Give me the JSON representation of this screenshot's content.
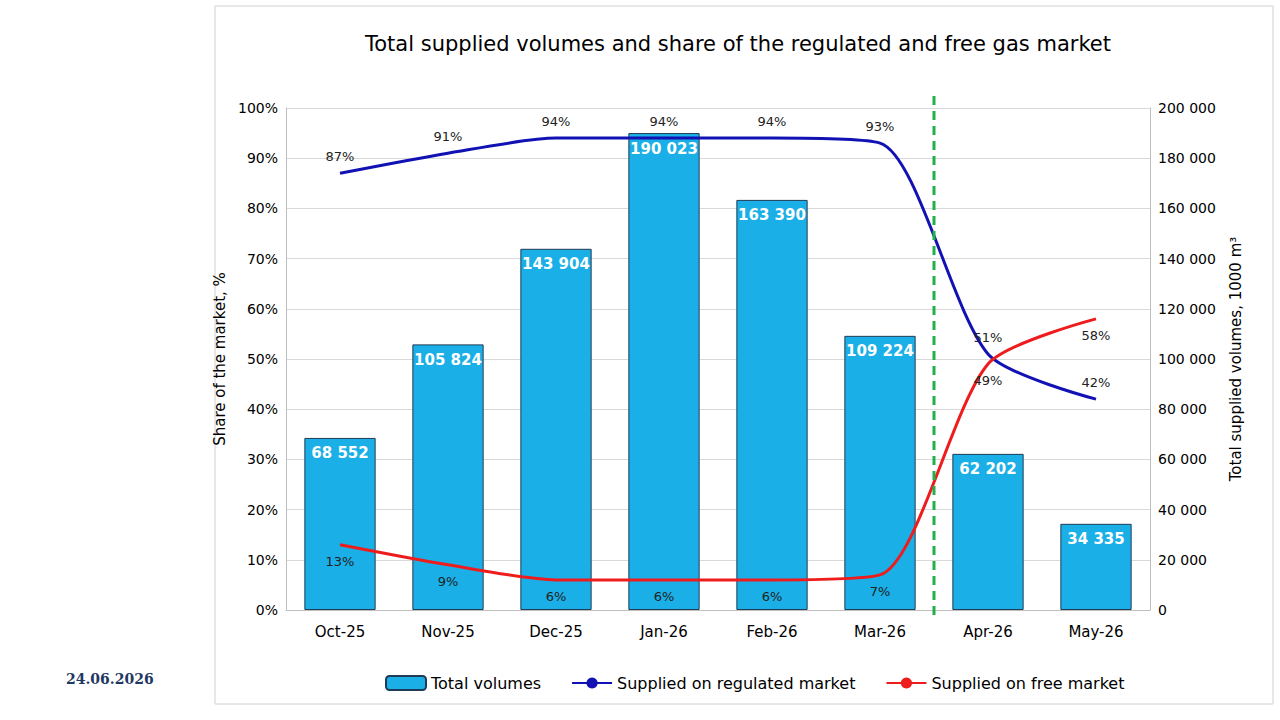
{
  "chart_data": {
    "type": "bar",
    "title": "Total supplied volumes and share of the regulated and free gas market",
    "categories": [
      "Oct-25",
      "Nov-25",
      "Dec-25",
      "Jan-26",
      "Feb-26",
      "Mar-26",
      "Apr-26",
      "May-26"
    ],
    "ylabel": "Share of the market, %",
    "y2label": "Total supplied volumes, 1000 m³",
    "ylim": [
      0,
      100
    ],
    "yticks": [
      {
        "value": 0,
        "label": "0%"
      },
      {
        "value": 10,
        "label": "10%"
      },
      {
        "value": 20,
        "label": "20%"
      },
      {
        "value": 30,
        "label": "30%"
      },
      {
        "value": 40,
        "label": "40%"
      },
      {
        "value": 50,
        "label": "50%"
      },
      {
        "value": 60,
        "label": "60%"
      },
      {
        "value": 70,
        "label": "70%"
      },
      {
        "value": 80,
        "label": "80%"
      },
      {
        "value": 90,
        "label": "90%"
      },
      {
        "value": 100,
        "label": "100%"
      }
    ],
    "y2lim": [
      0,
      200000
    ],
    "y2ticks": [
      0,
      {
        "value": 20000,
        "label": "20 000"
      },
      {
        "value": 40000,
        "label": "40 000"
      },
      {
        "value": 60000,
        "label": "60 000"
      },
      {
        "value": 80000,
        "label": "80 000"
      },
      {
        "value": 100000,
        "label": "100 000"
      },
      {
        "value": 120000,
        "label": "120 000"
      },
      {
        "value": 140000,
        "label": "140 000"
      },
      {
        "value": 160000,
        "label": "160 000"
      },
      {
        "value": 180000,
        "label": "180 000"
      },
      {
        "value": 200000,
        "label": "200 000"
      }
    ],
    "grid": true,
    "legend": "bottom",
    "data_labels": true,
    "annotations": [
      "24.06.2026"
    ],
    "series": [
      {
        "name": "Total volumes",
        "type": "bar",
        "axis": "y2",
        "color": "#1aafe6",
        "values": [
          68552,
          105824,
          143904,
          190023,
          163390,
          109224,
          62202,
          34335
        ],
        "value_labels": [
          "68 552",
          "105 824",
          "143 904",
          "190 023",
          "163 390",
          "109 224",
          "62 202",
          "34 335"
        ]
      },
      {
        "name": "Supplied on regulated market",
        "type": "line",
        "axis": "y",
        "color": "#1212b4",
        "marker": "none",
        "values": [
          87,
          91,
          94,
          94,
          94,
          93,
          51,
          42
        ],
        "value_labels": [
          "87%",
          "91%",
          "94%",
          "94%",
          "94%",
          "93%",
          "51%",
          "42%"
        ]
      },
      {
        "name": "Supplied on free market",
        "type": "line",
        "axis": "y",
        "color": "#ee1c1c",
        "marker": "none",
        "values": [
          13,
          9,
          6,
          6,
          6,
          7,
          49,
          58
        ],
        "value_labels": [
          "13%",
          "9%",
          "6%",
          "6%",
          "6%",
          "7%",
          "49%",
          "58%"
        ]
      }
    ]
  }
}
